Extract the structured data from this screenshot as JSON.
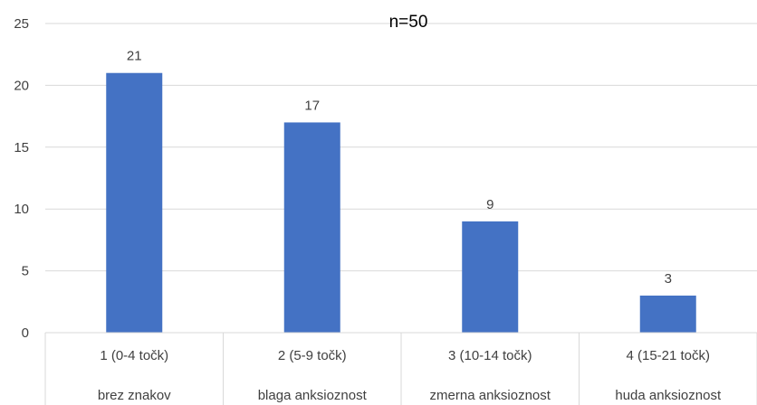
{
  "chart_data": {
    "type": "bar",
    "title": "n=50",
    "categories": [
      [
        "1 (0-4 točk)",
        "brez znakov"
      ],
      [
        "2 (5-9 točk)",
        "blaga anksioznost"
      ],
      [
        "3 (10-14 točk)",
        "zmerna anksioznost"
      ],
      [
        "4 (15-21 točk)",
        "huda anksioznost"
      ]
    ],
    "values": [
      21,
      17,
      9,
      3
    ],
    "ylim": [
      0,
      25
    ],
    "yticks": [
      0,
      5,
      10,
      15,
      20,
      25
    ],
    "grid": true,
    "colors": {
      "bar": "#4472C4",
      "grid": "#D9D9D9",
      "text": "#404040"
    }
  }
}
